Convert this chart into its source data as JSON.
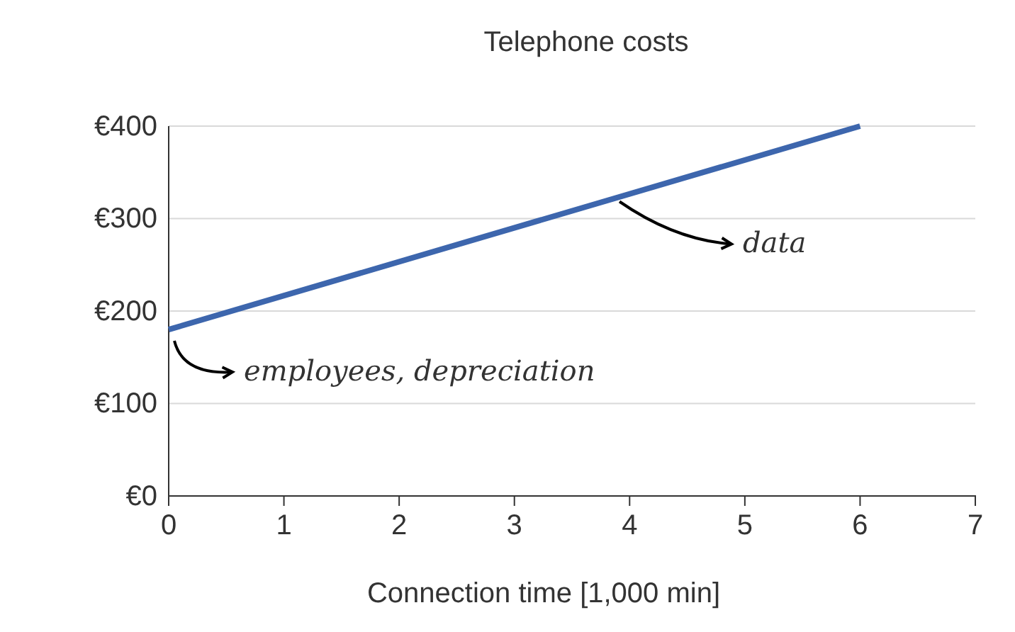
{
  "chart_data": {
    "type": "line",
    "title": "Telephone costs",
    "xlabel": "Connection time [1,000 min]",
    "x": [
      0,
      6
    ],
    "values": [
      180,
      400
    ],
    "color": "#3d66ad",
    "xlim": [
      0,
      7
    ],
    "xticks": [
      0,
      1,
      2,
      3,
      4,
      5,
      6,
      7
    ],
    "ylim": [
      0,
      400
    ],
    "yticks": [
      {
        "value": 0,
        "label": "€0"
      },
      {
        "value": 100,
        "label": "€100"
      },
      {
        "value": 200,
        "label": "€200"
      },
      {
        "value": 300,
        "label": "€300"
      },
      {
        "value": 400,
        "label": "€400"
      }
    ],
    "grid": "y",
    "marker": "none",
    "line_style": "solid",
    "annotations": [
      {
        "text": "employees, depreciation",
        "x": 0,
        "y": 180
      },
      {
        "text": "data",
        "x": 3.9,
        "y": 323
      }
    ]
  }
}
